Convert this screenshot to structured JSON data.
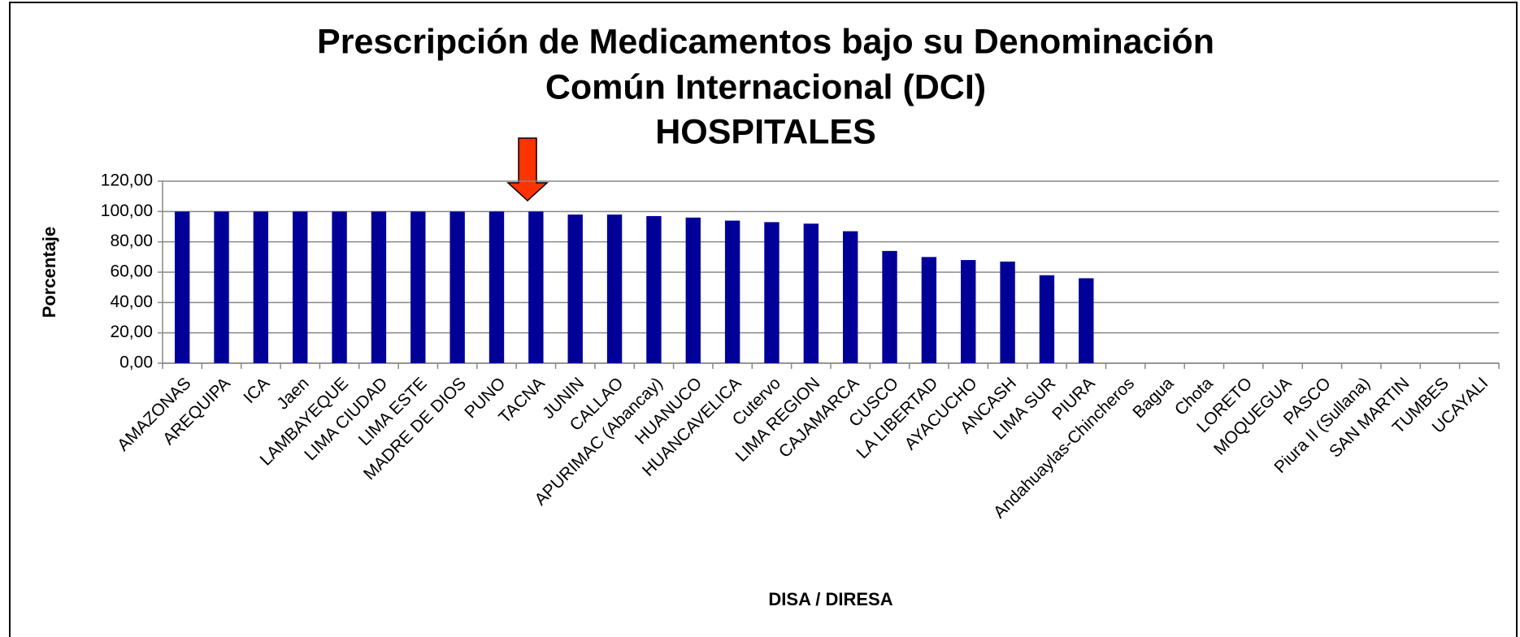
{
  "chart_data": {
    "type": "bar",
    "title": [
      "Prescripción de Medicamentos bajo su Denominación",
      "Común Internacional (DCI)"
    ],
    "subtitle": "HOSPITALES",
    "x_label": "DISA / DIRESA",
    "y_label": "Porcentaje",
    "categories": [
      "AMAZONAS",
      "AREQUIPA",
      "ICA",
      "Jaen",
      "LAMBAYEQUE",
      "LIMA CIUDAD",
      "LIMA ESTE",
      "MADRE DE DIOS",
      "PUNO",
      "TACNA",
      "JUNIN",
      "CALLAO",
      "APURIMAC (Abancay)",
      "HUANUCO",
      "HUANCAVELICA",
      "Cutervo",
      "LIMA REGION",
      "CAJAMARCA",
      "CUSCO",
      "LA LIBERTAD",
      "AYACUCHO",
      "ANCASH",
      "LIMA SUR",
      "PIURA",
      "Andahuaylas-Chincheros",
      "Bagua",
      "Chota",
      "LORETO",
      "MOQUEGUA",
      "PASCO",
      "Piura II (Sullana)",
      "SAN MARTIN",
      "TUMBES",
      "UCAYALI"
    ],
    "values": [
      100,
      100,
      100,
      100,
      100,
      100,
      100,
      100,
      100,
      100,
      98,
      98,
      97,
      96,
      94,
      93,
      92,
      87,
      74,
      70,
      68,
      67,
      58,
      56,
      null,
      null,
      null,
      null,
      null,
      null,
      null,
      null,
      null,
      null
    ],
    "color": "#000099",
    "ylim": [
      0,
      120
    ],
    "yticks": [
      {
        "value": 0,
        "label": "0,00"
      },
      {
        "value": 20,
        "label": "20,00"
      },
      {
        "value": 40,
        "label": "40,00"
      },
      {
        "value": 60,
        "label": "60,00"
      },
      {
        "value": 80,
        "label": "80,00"
      },
      {
        "value": 100,
        "label": "100,00"
      },
      {
        "value": 120,
        "label": "120,00"
      }
    ],
    "grid": true
  }
}
